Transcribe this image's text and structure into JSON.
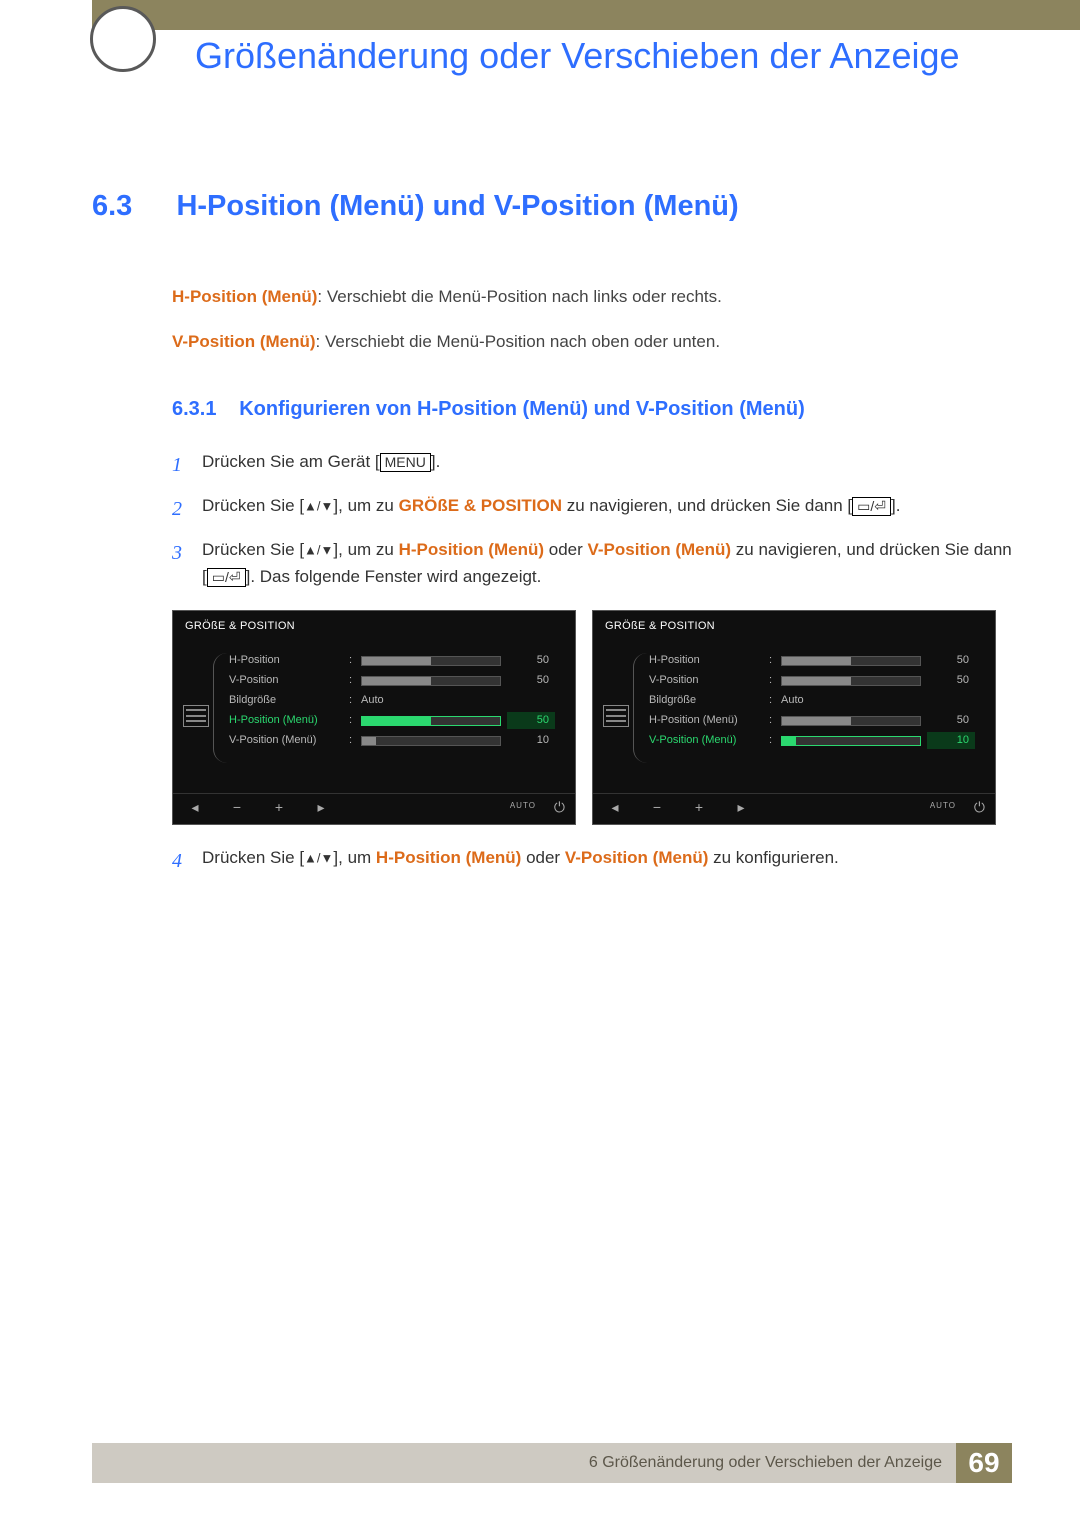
{
  "header": {
    "chapter_title": "Größenänderung oder Verschieben der Anzeige"
  },
  "section": {
    "number": "6.3",
    "title": "H-Position (Menü) und V-Position (Menü)"
  },
  "intro": {
    "term1": "H-Position (Menü)",
    "desc1": ": Verschiebt die Menü-Position nach links oder rechts.",
    "term2": "V-Position (Menü)",
    "desc2": ": Verschiebt die Menü-Position nach oben oder unten."
  },
  "subsection": {
    "number": "6.3.1",
    "title": "Konfigurieren von H-Position (Menü) und V-Position (Menü)"
  },
  "steps": {
    "s1": {
      "n": "1",
      "pre": "Drücken Sie am Gerät [",
      "key": "MENU",
      "post": "]."
    },
    "s2": {
      "n": "2",
      "pre": "Drücken Sie [",
      "arrows": "▲/▼",
      "mid": "], um zu ",
      "nav": "GRÖßE & POSITION",
      "post1": " zu navigieren, und drücken Sie dann [",
      "post2": "]."
    },
    "s3": {
      "n": "3",
      "pre": "Drücken Sie [",
      "arrows": "▲/▼",
      "mid": "], um zu ",
      "opt1": "H-Position (Menü)",
      "oder": " oder ",
      "opt2": "V-Position (Menü)",
      "post1": " zu navigieren, und drücken Sie dann [",
      "post2": "]. Das folgende Fenster wird angezeigt."
    },
    "s4": {
      "n": "4",
      "pre": "Drücken Sie [",
      "arrows": "▲/▼",
      "mid": "], um ",
      "opt1": "H-Position (Menü)",
      "oder": " oder ",
      "opt2": "V-Position (Menü)",
      "post": " zu konfigurieren."
    }
  },
  "osd_title": "GRÖßE & POSITION",
  "osd_rows": {
    "hpos": {
      "label": "H-Position",
      "value": "50"
    },
    "vpos": {
      "label": "V-Position",
      "value": "50"
    },
    "size": {
      "label": "Bildgröße",
      "text": "Auto"
    },
    "hmenu": {
      "label": "H-Position (Menü)",
      "value": "50"
    },
    "vmenu": {
      "label": "V-Position (Menü)",
      "value": "10"
    }
  },
  "osd_footer": {
    "auto": "AUTO"
  },
  "slider_fills": {
    "hpos": "50%",
    "vpos": "50%",
    "hmenu": "50%",
    "vmenu": "10%"
  },
  "colors": {
    "accent_blue": "#2e6eff",
    "accent_orange": "#dc6b1a",
    "osd_highlight": "#2bd86f",
    "footer_bar": "#cecac2",
    "footer_num": "#8c845e"
  },
  "footer": {
    "caption": "6 Größenänderung oder Verschieben der Anzeige",
    "page": "69"
  }
}
